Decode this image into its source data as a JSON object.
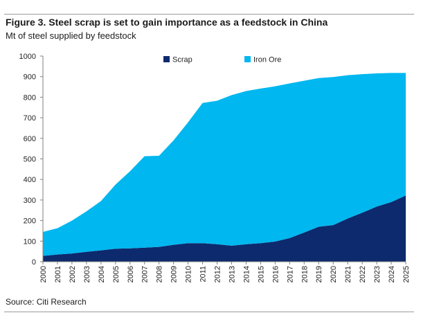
{
  "header": {
    "title": "Figure 3. Steel scrap is set to gain importance as a feedstock in China",
    "subtitle": "Mt of steel supplied by feedstock"
  },
  "footer": {
    "source": "Source: Citi Research"
  },
  "colors": {
    "scrap": "#0d2a6e",
    "iron_ore": "#00b7ef"
  },
  "chart_data": {
    "type": "area",
    "stacked": true,
    "title": "Figure 3. Steel scrap is set to gain importance as a feedstock in China",
    "ylabel": "Mt of steel supplied by feedstock",
    "xlabel": "",
    "ylim": [
      0,
      1000
    ],
    "yticks": [
      0,
      100,
      200,
      300,
      400,
      500,
      600,
      700,
      800,
      900,
      1000
    ],
    "grid": false,
    "legend_position": "top-center",
    "x": [
      "2000",
      "2001",
      "2002",
      "2003",
      "2004",
      "2005",
      "2006",
      "2007",
      "2008",
      "2009",
      "2010",
      "2011",
      "2012",
      "2013",
      "2014",
      "2015",
      "2016",
      "2017",
      "2018",
      "2019",
      "2020",
      "2021",
      "2022",
      "2023",
      "2024",
      "2025"
    ],
    "series": [
      {
        "name": "Scrap",
        "values": [
          28,
          35,
          40,
          48,
          55,
          63,
          65,
          68,
          72,
          82,
          90,
          90,
          85,
          78,
          85,
          90,
          98,
          115,
          142,
          170,
          178,
          210,
          238,
          268,
          290,
          322
        ]
      },
      {
        "name": "Iron Ore",
        "values": [
          117,
          128,
          160,
          197,
          240,
          312,
          375,
          445,
          443,
          508,
          588,
          682,
          698,
          732,
          745,
          752,
          755,
          752,
          738,
          723,
          720,
          697,
          674,
          648,
          628,
          596
        ]
      }
    ],
    "totals": [
      145,
      163,
      200,
      245,
      295,
      375,
      440,
      513,
      515,
      590,
      678,
      772,
      783,
      810,
      830,
      842,
      853,
      867,
      880,
      893,
      898,
      907,
      912,
      916,
      918,
      918
    ]
  }
}
